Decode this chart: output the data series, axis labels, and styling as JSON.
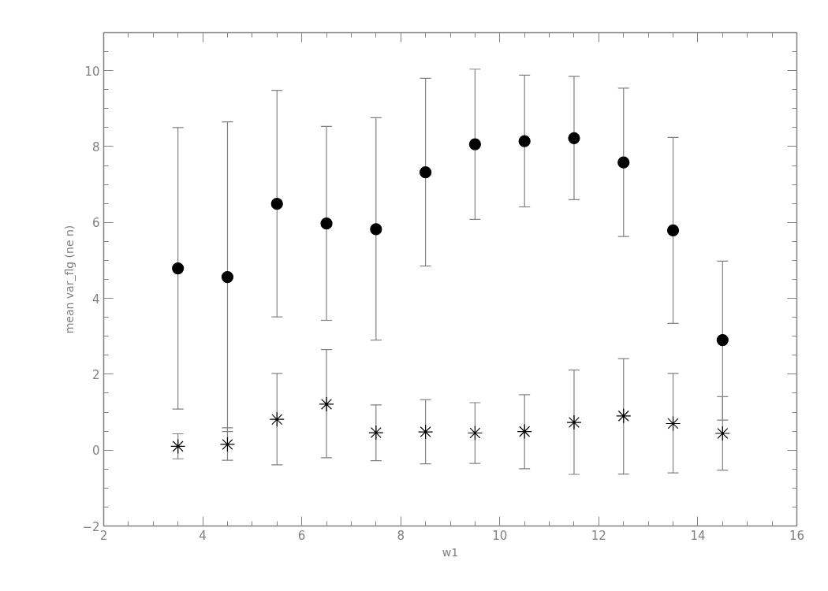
{
  "chart_data": {
    "type": "scatter",
    "xlabel": "w1",
    "ylabel": "mean var_flg (ne n)",
    "x": [
      3.5,
      4.5,
      5.5,
      6.5,
      7.5,
      8.5,
      9.5,
      10.5,
      11.5,
      12.5,
      13.5,
      14.5
    ],
    "xlim": [
      2,
      16
    ],
    "xticks": [
      2,
      4,
      6,
      8,
      10,
      12,
      14,
      16
    ],
    "ylim": [
      -2,
      11
    ],
    "yticks": [
      -2,
      0,
      2,
      4,
      6,
      8,
      10
    ],
    "grid": false,
    "series": [
      {
        "color": "#000000",
        "marker": "circle",
        "values": [
          4.79,
          4.56,
          6.49,
          5.97,
          5.82,
          7.32,
          8.06,
          8.14,
          8.22,
          7.58,
          5.79,
          2.9
        ],
        "errors": [
          [
            1.08,
            8.5
          ],
          [
            0.49,
            8.65
          ],
          [
            3.51,
            9.48
          ],
          [
            3.42,
            8.53
          ],
          [
            2.9,
            8.76
          ],
          [
            4.85,
            9.8
          ],
          [
            6.08,
            10.04
          ],
          [
            6.41,
            9.88
          ],
          [
            6.6,
            9.85
          ],
          [
            5.63,
            9.54
          ],
          [
            3.34,
            8.24
          ],
          [
            0.79,
            4.98
          ]
        ]
      },
      {
        "color": "#000000",
        "marker": "cross",
        "values": [
          0.1,
          0.15,
          0.81,
          1.21,
          0.46,
          0.48,
          0.45,
          0.49,
          0.73,
          0.9,
          0.7,
          0.44
        ],
        "errors": [
          [
            -0.23,
            0.43
          ],
          [
            -0.27,
            0.59
          ],
          [
            -0.39,
            2.02
          ],
          [
            -0.2,
            2.65
          ],
          [
            -0.28,
            1.19
          ],
          [
            -0.36,
            1.33
          ],
          [
            -0.35,
            1.25
          ],
          [
            -0.49,
            1.46
          ],
          [
            -0.64,
            2.11
          ],
          [
            -0.63,
            2.41
          ],
          [
            -0.6,
            2.02
          ],
          [
            -0.53,
            1.41
          ]
        ]
      }
    ]
  }
}
